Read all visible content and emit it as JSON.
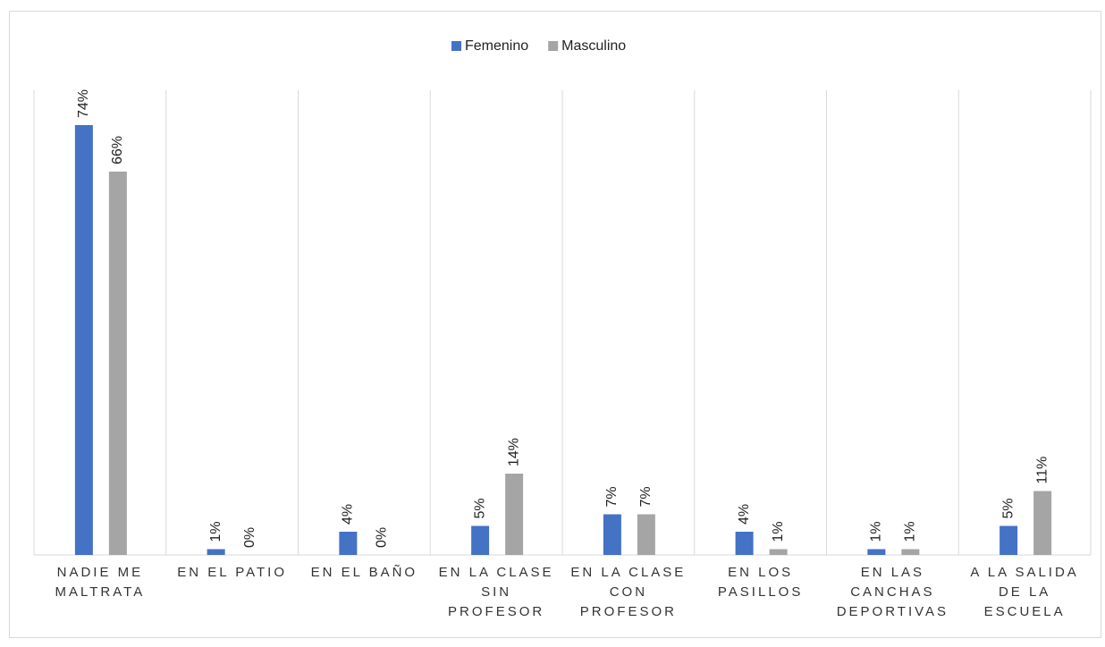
{
  "chart_data": {
    "type": "bar",
    "categories": [
      "NADIE ME MALTRATA",
      "EN EL PATIO",
      "EN EL BAÑO",
      "EN LA CLASE SIN PROFESOR",
      "EN LA CLASE CON PROFESOR",
      "EN LOS PASILLOS",
      "EN LAS CANCHAS DEPORTIVAS",
      "A LA SALIDA DE LA ESCUELA"
    ],
    "series": [
      {
        "name": "Femenino",
        "color": "#4472c4",
        "values": [
          74,
          1,
          4,
          5,
          7,
          4,
          1,
          5
        ],
        "value_labels": [
          "74%",
          "1%",
          "4%",
          "5%",
          "7%",
          "4%",
          "1%",
          "5%"
        ]
      },
      {
        "name": "Masculino",
        "color": "#a5a5a5",
        "values": [
          66,
          0,
          0,
          14,
          7,
          1,
          1,
          11
        ],
        "value_labels": [
          "66%",
          "0%",
          "0%",
          "14%",
          "7%",
          "1%",
          "1%",
          "11%"
        ]
      }
    ],
    "ylim": [
      0,
      80
    ],
    "legend": "top"
  }
}
